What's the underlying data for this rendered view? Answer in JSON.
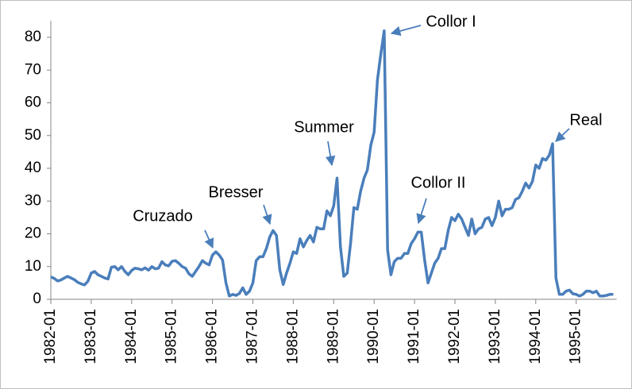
{
  "chart_data": {
    "type": "line",
    "categories": [
      "1982-01",
      null,
      null,
      null,
      null,
      null,
      null,
      null,
      null,
      null,
      null,
      null,
      "1983-01",
      null,
      null,
      null,
      null,
      null,
      null,
      null,
      null,
      null,
      null,
      null,
      "1984-01",
      null,
      null,
      null,
      null,
      null,
      null,
      null,
      null,
      null,
      null,
      null,
      "1985-01",
      null,
      null,
      null,
      null,
      null,
      null,
      null,
      null,
      null,
      null,
      null,
      "1986-01",
      null,
      null,
      null,
      null,
      null,
      null,
      null,
      null,
      null,
      null,
      null,
      "1987-01",
      null,
      null,
      null,
      null,
      null,
      null,
      null,
      null,
      null,
      null,
      null,
      "1988-01",
      null,
      null,
      null,
      null,
      null,
      null,
      null,
      null,
      null,
      null,
      null,
      "1989-01",
      null,
      null,
      null,
      null,
      null,
      null,
      null,
      null,
      null,
      null,
      null,
      "1990-01",
      null,
      null,
      null,
      null,
      null,
      null,
      null,
      null,
      null,
      null,
      null,
      "1991-01",
      null,
      null,
      null,
      null,
      null,
      null,
      null,
      null,
      null,
      null,
      null,
      "1992-01",
      null,
      null,
      null,
      null,
      null,
      null,
      null,
      null,
      null,
      null,
      null,
      "1993-01",
      null,
      null,
      null,
      null,
      null,
      null,
      null,
      null,
      null,
      null,
      null,
      "1994-01",
      null,
      null,
      null,
      null,
      null,
      null,
      null,
      null,
      null,
      null,
      null,
      "1995-01",
      null,
      null,
      null,
      null,
      null,
      null,
      null,
      null,
      null,
      null,
      null
    ],
    "values": [
      6.8,
      6.4,
      5.6,
      5.9,
      6.5,
      7,
      6.5,
      6,
      5.2,
      4.7,
      4.4,
      5.5,
      8,
      8.5,
      7.5,
      7,
      6.5,
      6.2,
      9.8,
      10,
      9,
      10,
      8.5,
      7.5,
      8.8,
      9.5,
      9.3,
      9,
      9.6,
      8.9,
      10,
      9.3,
      9.5,
      11.5,
      10.5,
      10.2,
      11.6,
      11.8,
      11,
      10,
      9.5,
      7.8,
      7,
      8.5,
      10,
      11.8,
      11,
      10.5,
      13.5,
      14.5,
      13.5,
      12,
      5,
      1,
      1.5,
      1.2,
      1.8,
      3.5,
      1.5,
      2.5,
      5,
      11.8,
      13,
      13,
      15.5,
      19,
      21,
      19.5,
      9,
      4.5,
      8,
      11,
      14.5,
      14,
      18.5,
      16,
      18,
      19.5,
      17.5,
      22,
      21.5,
      21.5,
      27,
      25.5,
      28.5,
      37,
      16,
      7,
      8,
      17,
      28,
      27.5,
      33,
      37,
      39.5,
      47,
      51,
      67,
      75,
      82,
      15,
      7.5,
      11.5,
      12.5,
      12.5,
      14,
      14,
      17,
      18.5,
      20.5,
      20.5,
      12,
      5,
      8,
      11,
      12.5,
      15.5,
      15.5,
      21,
      25,
      24,
      26,
      24.5,
      22,
      19.5,
      24.5,
      20,
      21.5,
      22,
      24.5,
      25,
      22.5,
      25,
      30,
      25.5,
      27.5,
      27.5,
      28,
      30.5,
      31,
      33,
      35.5,
      34,
      36,
      41,
      40,
      43,
      42.5,
      44,
      47.5,
      6.5,
      1.5,
      1.5,
      2.5,
      2.8,
      1.7,
      1.5,
      1,
      1.5,
      2.5,
      2.5,
      2,
      2.5,
      1,
      1,
      1.2,
      1.5,
      1.5
    ],
    "color": "#4a7ebb",
    "ylim": [
      0,
      85
    ],
    "yticks": [
      0,
      10,
      20,
      30,
      40,
      50,
      60,
      70,
      80
    ],
    "annotations": [
      "Cruzado",
      "Bresser",
      "Summer",
      "Collor I",
      "Collor II",
      "Real"
    ]
  }
}
